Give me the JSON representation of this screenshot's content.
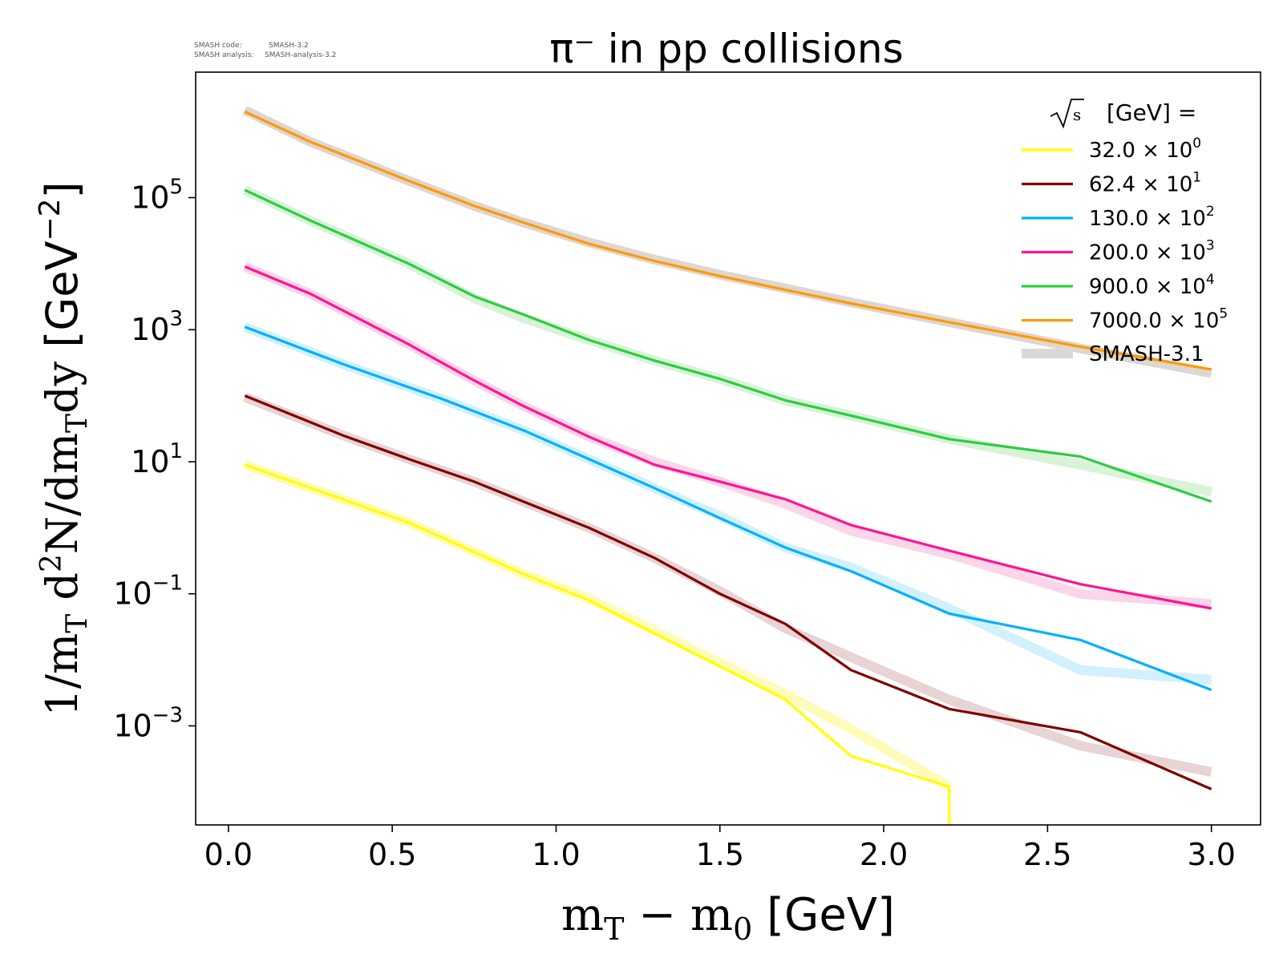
{
  "meta": {
    "code_label": "SMASH code:",
    "code_value": "SMASH-3.2",
    "analysis_label": "SMASH analysis:",
    "analysis_value": "SMASH-analysis-3.2"
  },
  "chart_data": {
    "type": "line",
    "title": "π⁻ in pp collisions",
    "xlabel": {
      "main": "m",
      "sub1": "T",
      "mid": " − m",
      "sub2": "0",
      "unit": " [GeV]"
    },
    "ylabel": {
      "part1": "1/m",
      "sub1": "T",
      "part2": " d",
      "sup1": "2",
      "part3": "N/dm",
      "sub2": "T",
      "part4": "dy",
      "unit_open": " [GeV",
      "unit_sup": "−2",
      "unit_close": "]"
    },
    "xlim": [
      -0.1,
      3.15
    ],
    "ylim_log10": [
      -4.5,
      6.9
    ],
    "y_scale": "log",
    "x_ticks": [
      "0.0",
      "0.5",
      "1.0",
      "1.5",
      "2.0",
      "2.5",
      "3.0"
    ],
    "y_ticks": [
      {
        "base": "10",
        "exp": "5",
        "value_log10": 5
      },
      {
        "base": "10",
        "exp": "3",
        "value_log10": 3
      },
      {
        "base": "10",
        "exp": "1",
        "value_log10": 1
      },
      {
        "base": "10",
        "exp": "−1",
        "value_log10": -1
      },
      {
        "base": "10",
        "exp": "−3",
        "value_log10": -3
      }
    ],
    "legend": {
      "placement": "top-right",
      "title_sym": "s",
      "title_text": "[GeV] ="
    },
    "series": [
      {
        "name": "32.0",
        "exp": "0",
        "color": "#ffff00",
        "x": [
          0.05,
          0.55,
          0.9,
          1.1,
          1.5,
          1.7,
          1.9,
          2.2,
          2.2
        ],
        "y": [
          9,
          1.2,
          0.2,
          0.08,
          0.008,
          0.0025,
          0.00035,
          0.00012,
          3e-05
        ]
      },
      {
        "name": "62.4",
        "exp": "1",
        "color": "#800000",
        "x": [
          0.05,
          0.35,
          0.55,
          0.75,
          0.9,
          1.1,
          1.3,
          1.5,
          1.7,
          1.9,
          2.2,
          2.6,
          3.0
        ],
        "y": [
          100,
          25,
          11,
          5,
          2.5,
          1,
          0.35,
          0.1,
          0.035,
          0.007,
          0.0018,
          0.0008,
          0.00011
        ]
      },
      {
        "name": "130.0",
        "exp": "2",
        "color": "#00b0ff",
        "x": [
          0.05,
          0.35,
          0.65,
          0.9,
          1.1,
          1.3,
          1.5,
          1.7,
          1.9,
          2.2,
          2.6,
          3.0
        ],
        "y": [
          1100,
          300,
          90,
          30,
          11,
          4,
          1.4,
          0.5,
          0.22,
          0.05,
          0.02,
          0.0035
        ]
      },
      {
        "name": "200.0",
        "exp": "3",
        "color": "#ff1493",
        "x": [
          0.05,
          0.25,
          0.55,
          0.75,
          0.9,
          1.1,
          1.3,
          1.5,
          1.7,
          1.9,
          2.2,
          2.6,
          3.0
        ],
        "y": [
          9000,
          3500,
          600,
          170,
          70,
          24,
          9,
          5,
          2.7,
          1.1,
          0.45,
          0.14,
          0.06
        ]
      },
      {
        "name": "900.0",
        "exp": "4",
        "color": "#2ecc40",
        "x": [
          0.05,
          0.25,
          0.55,
          0.75,
          0.9,
          1.1,
          1.3,
          1.5,
          1.7,
          1.9,
          2.2,
          2.6,
          3.0
        ],
        "y": [
          130000,
          45000,
          10000,
          3200,
          1700,
          700,
          340,
          180,
          85,
          50,
          22,
          12,
          2.5
        ]
      },
      {
        "name": "7000.0",
        "exp": "5",
        "color": "#ff9900",
        "x": [
          0.05,
          0.25,
          0.55,
          0.75,
          0.9,
          1.1,
          1.3,
          1.5,
          1.7,
          1.9,
          2.2,
          2.6,
          3.0
        ],
        "y": [
          2000000,
          700000,
          180000,
          75000,
          42000,
          20000,
          11000,
          6500,
          4000,
          2500,
          1300,
          550,
          250
        ]
      }
    ],
    "reference": {
      "name": "SMASH-3.1",
      "color": "#d9d9d9",
      "series": [
        {
          "color": "#fffbb0",
          "x": [
            0.05,
            0.55,
            0.9,
            1.1,
            1.5,
            1.7,
            1.9,
            2.2
          ],
          "y": [
            9,
            1.2,
            0.2,
            0.085,
            0.009,
            0.003,
            0.0009,
            0.00012
          ]
        },
        {
          "color": "#e6cfcf",
          "x": [
            0.05,
            0.35,
            0.55,
            0.75,
            0.9,
            1.1,
            1.3,
            1.5,
            1.7,
            1.9,
            2.2,
            2.6,
            3.0
          ],
          "y": [
            95,
            25,
            11,
            5,
            2.5,
            1,
            0.35,
            0.11,
            0.03,
            0.011,
            0.0025,
            0.0005,
            0.0002
          ]
        },
        {
          "color": "#cdeefd",
          "x": [
            0.05,
            0.35,
            0.65,
            0.9,
            1.1,
            1.3,
            1.5,
            1.7,
            1.9,
            2.2,
            2.6,
            3.0
          ],
          "y": [
            1100,
            300,
            90,
            30,
            11,
            4,
            1.5,
            0.5,
            0.25,
            0.06,
            0.007,
            0.005
          ]
        },
        {
          "color": "#fad2e6",
          "x": [
            0.05,
            0.25,
            0.55,
            0.75,
            0.9,
            1.1,
            1.3,
            1.5,
            1.7,
            1.9,
            2.2,
            2.6,
            3.0
          ],
          "y": [
            9000,
            3500,
            600,
            170,
            70,
            24,
            10,
            5,
            2.3,
            0.9,
            0.4,
            0.1,
            0.07
          ]
        },
        {
          "color": "#d4f2d4",
          "x": [
            0.05,
            0.25,
            0.55,
            0.75,
            0.9,
            1.1,
            1.3,
            1.5,
            1.7,
            1.9,
            2.2,
            2.6,
            3.0
          ],
          "y": [
            130000,
            45000,
            10000,
            3000,
            1500,
            700,
            340,
            180,
            85,
            50,
            22,
            9,
            3.5
          ]
        },
        {
          "color": "#d9d2cc",
          "x": [
            0.05,
            0.25,
            0.55,
            0.75,
            0.9,
            1.1,
            1.3,
            1.5,
            1.7,
            1.9,
            2.2,
            2.6,
            3.0
          ],
          "y": [
            2100000,
            700000,
            180000,
            75000,
            42000,
            21000,
            11500,
            6800,
            4200,
            2600,
            1300,
            520,
            220
          ]
        }
      ]
    }
  }
}
